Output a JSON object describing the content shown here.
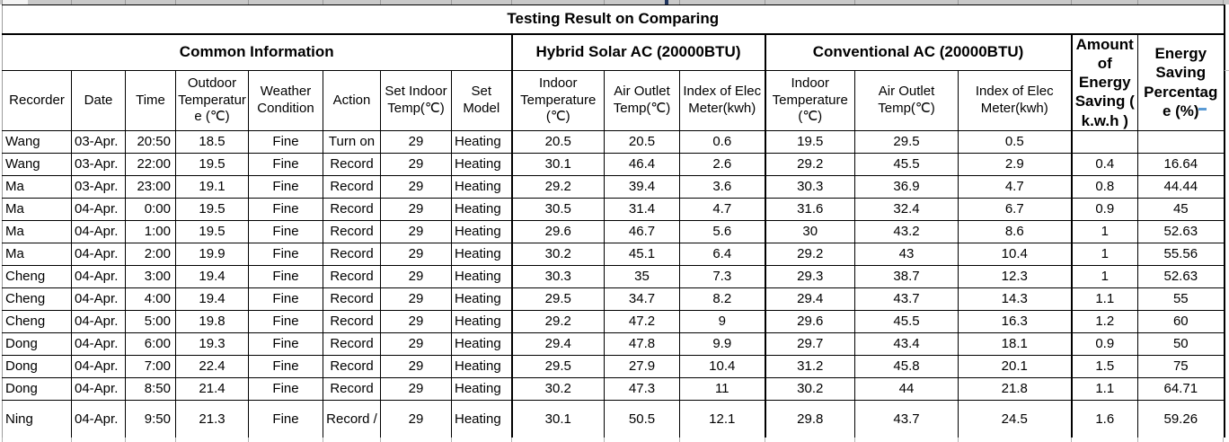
{
  "title": "Testing Result on Comparing",
  "table": {
    "groups": [
      {
        "label": "Common Information"
      },
      {
        "label": "Hybrid Solar AC (20000BTU)"
      },
      {
        "label": "Conventional AC (20000BTU)"
      }
    ],
    "merged_headers": [
      {
        "label": "Amount of Energy Saving ( k.w.h )"
      },
      {
        "label": "Energy Saving Percentage (%)"
      }
    ],
    "columns": [
      "Recorder",
      "Date",
      "Time",
      "Outdoor Temperature (℃)",
      "Weather Condition",
      "Action",
      "Set Indoor Temp(℃)",
      "Set Model",
      "Indoor Temperature (℃)",
      "Air Outlet Temp(℃)",
      "Index of Elec Meter(kwh)",
      "Indoor Temperature (℃)",
      "Air Outlet Temp(℃)",
      "Index of Elec Meter(kwh)"
    ],
    "rows": [
      [
        "Wang",
        "03-Apr.",
        "20:50",
        "18.5",
        "Fine",
        "Turn on",
        "29",
        "Heating",
        "20.5",
        "20.5",
        "0.6",
        "19.5",
        "29.5",
        "0.5",
        "",
        ""
      ],
      [
        "Wang",
        "03-Apr.",
        "22:00",
        "19.5",
        "Fine",
        "Record",
        "29",
        "Heating",
        "30.1",
        "46.4",
        "2.6",
        "29.2",
        "45.5",
        "2.9",
        "0.4",
        "16.64"
      ],
      [
        "Ma",
        "03-Apr.",
        "23:00",
        "19.1",
        "Fine",
        "Record",
        "29",
        "Heating",
        "29.2",
        "39.4",
        "3.6",
        "30.3",
        "36.9",
        "4.7",
        "0.8",
        "44.44"
      ],
      [
        "Ma",
        "04-Apr.",
        "0:00",
        "19.5",
        "Fine",
        "Record",
        "29",
        "Heating",
        "30.5",
        "31.4",
        "4.7",
        "31.6",
        "32.4",
        "6.7",
        "0.9",
        "45"
      ],
      [
        "Ma",
        "04-Apr.",
        "1:00",
        "19.5",
        "Fine",
        "Record",
        "29",
        "Heating",
        "29.6",
        "46.7",
        "5.6",
        "30",
        "43.2",
        "8.6",
        "1",
        "52.63"
      ],
      [
        "Ma",
        "04-Apr.",
        "2:00",
        "19.9",
        "Fine",
        "Record",
        "29",
        "Heating",
        "30.2",
        "45.1",
        "6.4",
        "29.2",
        "43",
        "10.4",
        "1",
        "55.56"
      ],
      [
        "Cheng",
        "04-Apr.",
        "3:00",
        "19.4",
        "Fine",
        "Record",
        "29",
        "Heating",
        "30.3",
        "35",
        "7.3",
        "29.3",
        "38.7",
        "12.3",
        "1",
        "52.63"
      ],
      [
        "Cheng",
        "04-Apr.",
        "4:00",
        "19.4",
        "Fine",
        "Record",
        "29",
        "Heating",
        "29.5",
        "34.7",
        "8.2",
        "29.4",
        "43.7",
        "14.3",
        "1.1",
        "55"
      ],
      [
        "Cheng",
        "04-Apr.",
        "5:00",
        "19.8",
        "Fine",
        "Record",
        "29",
        "Heating",
        "29.2",
        "47.2",
        "9",
        "29.6",
        "45.5",
        "16.3",
        "1.2",
        "60"
      ],
      [
        "Dong",
        "04-Apr.",
        "6:00",
        "19.3",
        "Fine",
        "Record",
        "29",
        "Heating",
        "29.4",
        "47.8",
        "9.9",
        "29.7",
        "43.4",
        "18.1",
        "0.9",
        "50"
      ],
      [
        "Dong",
        "04-Apr.",
        "7:00",
        "22.4",
        "Fine",
        "Record",
        "29",
        "Heating",
        "29.5",
        "27.9",
        "10.4",
        "31.2",
        "45.8",
        "20.1",
        "1.5",
        "75"
      ],
      [
        "Dong",
        "04-Apr.",
        "8:50",
        "21.4",
        "Fine",
        "Record",
        "29",
        "Heating",
        "30.2",
        "47.3",
        "11",
        "30.2",
        "44",
        "21.8",
        "1.1",
        "64.71"
      ],
      [
        "Ning",
        "04-Apr.",
        "9:50",
        "21.3",
        "Fine",
        "Record /",
        "29",
        "Heating",
        "30.1",
        "50.5",
        "12.1",
        "29.8",
        "43.7",
        "24.5",
        "1.6",
        "59.26"
      ]
    ]
  }
}
